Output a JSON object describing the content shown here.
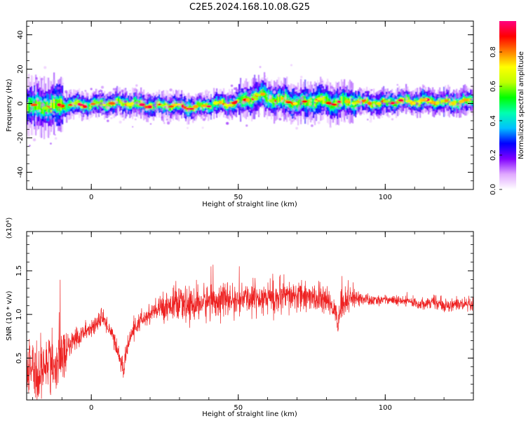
{
  "title": "C2E5.2024.168.10.08.G25",
  "chart_data": [
    {
      "type": "heatmap",
      "title": "C2E5.2024.168.10.08.G25",
      "xlabel": "Height of straight line (km)",
      "ylabel": "Frequency (Hz)",
      "xlim": [
        -22,
        130
      ],
      "ylim": [
        -50,
        48
      ],
      "xticks": [
        0,
        50,
        100
      ],
      "yticks": [
        40,
        20,
        0,
        -20,
        -40
      ],
      "grid": false,
      "colorbar": {
        "label": "Normalized spectral amplitude",
        "range": [
          0,
          0.98
        ],
        "ticks": [
          0.0,
          0.2,
          0.4,
          0.6,
          0.8
        ],
        "colormap": [
          "#ffffff",
          "#e0a8ff",
          "#8000ff",
          "#0000ff",
          "#00c0ff",
          "#00ffb0",
          "#00ff00",
          "#c0ff00",
          "#ffff00",
          "#ff8000",
          "#ff0000",
          "#ff0080"
        ]
      },
      "ridge": {
        "x": [
          -22,
          -18,
          -14,
          -10,
          -6,
          -2,
          2,
          6,
          10,
          14,
          18,
          22,
          26,
          30,
          34,
          38,
          42,
          46,
          50,
          54,
          58,
          62,
          66,
          70,
          74,
          78,
          82,
          86,
          90,
          94,
          98,
          102,
          106,
          110,
          114,
          118,
          122,
          126,
          130
        ],
        "y": [
          -1,
          -2,
          -1.5,
          -1,
          -0.5,
          -1,
          -0.5,
          0,
          0.5,
          0,
          -1,
          -1.5,
          -1,
          -1.5,
          -2.5,
          -1.5,
          0,
          -0.5,
          1,
          3,
          5,
          2,
          2,
          0,
          1,
          2,
          0,
          1,
          1,
          0.5,
          0,
          1,
          1.5,
          1,
          1.5,
          1,
          0.5,
          1,
          1.5
        ]
      }
    },
    {
      "type": "line",
      "xlabel": "Height of straight line (km)",
      "ylabel": "SNR (10 * v/v)",
      "y_multiplier": "(x10⁴)",
      "xlim": [
        -22,
        130
      ],
      "ylim": [
        0.02,
        1.95
      ],
      "xticks": [
        0,
        50,
        100
      ],
      "yticks": [
        0.5,
        1.0,
        1.5
      ],
      "ytick_labels": [
        "0.5",
        "1.0",
        "1.5"
      ],
      "grid": false,
      "series": [
        {
          "color": "#ee2222",
          "x": [
            -22,
            -20,
            -18,
            -16,
            -14,
            -12,
            -10,
            -8,
            -6,
            -4,
            -2,
            0,
            2,
            4,
            6,
            8,
            10,
            11,
            12,
            14,
            16,
            18,
            20,
            24,
            28,
            32,
            36,
            40,
            44,
            48,
            52,
            56,
            60,
            64,
            68,
            72,
            76,
            80,
            83,
            84,
            85,
            86,
            88,
            92,
            96,
            100,
            104,
            108,
            112,
            116,
            120,
            124,
            128,
            130
          ],
          "y": [
            0.3,
            0.45,
            0.25,
            0.4,
            0.5,
            0.35,
            0.55,
            0.6,
            0.7,
            0.75,
            0.8,
            0.85,
            0.9,
            0.95,
            0.85,
            0.7,
            0.45,
            0.35,
            0.6,
            0.8,
            0.9,
            0.95,
            1.0,
            1.08,
            1.12,
            1.1,
            1.12,
            1.15,
            1.18,
            1.15,
            1.18,
            1.2,
            1.2,
            1.18,
            1.2,
            1.22,
            1.18,
            1.15,
            1.05,
            0.85,
            1.2,
            1.1,
            1.2,
            1.18,
            1.15,
            1.18,
            1.15,
            1.15,
            1.12,
            1.15,
            1.1,
            1.12,
            1.1,
            1.1
          ],
          "amplitude": [
            0.25,
            0.3,
            0.35,
            0.3,
            0.35,
            0.3,
            0.3,
            0.2,
            0.15,
            0.12,
            0.1,
            0.1,
            0.1,
            0.1,
            0.1,
            0.1,
            0.1,
            0.1,
            0.1,
            0.1,
            0.1,
            0.1,
            0.12,
            0.15,
            0.18,
            0.18,
            0.2,
            0.2,
            0.2,
            0.15,
            0.15,
            0.2,
            0.22,
            0.2,
            0.18,
            0.18,
            0.15,
            0.15,
            0.12,
            0.1,
            0.25,
            0.15,
            0.12,
            0.08,
            0.06,
            0.05,
            0.06,
            0.06,
            0.06,
            0.07,
            0.07,
            0.08,
            0.08,
            0.08
          ]
        }
      ]
    }
  ]
}
